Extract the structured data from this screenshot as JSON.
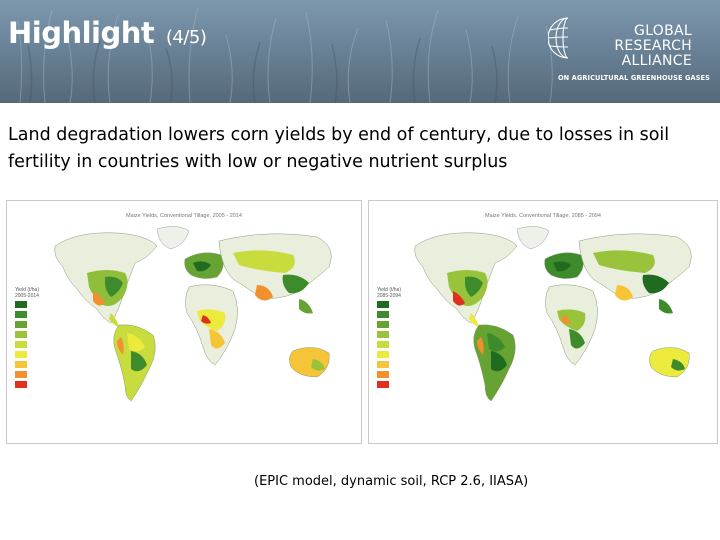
{
  "slide": {
    "title": "Highlight",
    "title_suffix": "(4/5)",
    "headline": "Land degradation lowers corn yields by end of century, due to losses in soil fertility in countries with low or negative nutrient surplus",
    "caption": "(EPIC model, dynamic soil, RCP 2.6, IIASA)"
  },
  "logo": {
    "line1": "GLOBAL",
    "line2": "RESEARCH",
    "line3": "ALLIANCE",
    "tagline": "ON AGRICULTURAL GREENHOUSE GASES"
  },
  "maps": [
    {
      "title": "Maize Yields, Conventional Tillage, 2005 - 2014",
      "legend_title_1": "Yield (t/ha)",
      "legend_title_2": "2005-2014"
    },
    {
      "title": "Maize Yields, Conventional Tillage, 2085 - 2094",
      "legend_title_1": "Yield (t/ha)",
      "legend_title_2": "2085-2094"
    }
  ],
  "legend_colors": [
    "#1f6b1f",
    "#3d8b2a",
    "#67a332",
    "#98c33a",
    "#c8dc3e",
    "#ecea3c",
    "#f6c437",
    "#f0902e",
    "#e0301e"
  ],
  "legend_labels": [
    "",
    "",
    "",
    "",
    "",
    "",
    "",
    "",
    ""
  ]
}
